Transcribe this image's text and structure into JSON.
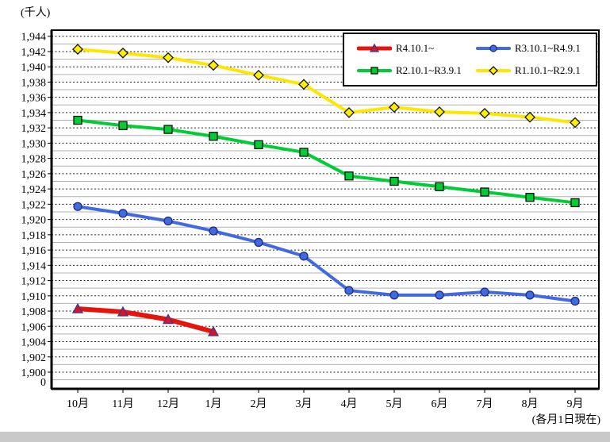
{
  "chart_data": {
    "type": "line",
    "unit_label": "(千人)",
    "footnote": "(各月1日現在)",
    "categories": [
      "10月",
      "11月",
      "12月",
      "1月",
      "2月",
      "3月",
      "4月",
      "5月",
      "6月",
      "7月",
      "8月",
      "9月"
    ],
    "series": [
      {
        "name": "R4.10.1~",
        "line_color": "#e8140c",
        "line_width": 6,
        "marker": "triangle",
        "marker_fill": "#de1126",
        "marker_stroke": "#3a3a8c",
        "values": [
          1908.3,
          1907.9,
          1906.9,
          1905.3,
          null,
          null,
          null,
          null,
          null,
          null,
          null,
          null
        ]
      },
      {
        "name": "R3.10.1~R4.9.1",
        "line_color": "#4169e1",
        "line_width": 4,
        "marker": "circle",
        "marker_fill": "#4169e1",
        "marker_stroke": "#1b2f7d",
        "values": [
          1921.7,
          1920.8,
          1919.8,
          1918.5,
          1917.0,
          1915.2,
          1910.7,
          1910.1,
          1910.1,
          1910.5,
          1910.1,
          1909.3
        ]
      },
      {
        "name": "R2.10.1~R3.9.1",
        "line_color": "#00cc33",
        "line_width": 4,
        "marker": "square",
        "marker_fill": "#00cc33",
        "marker_stroke": "#111111",
        "values": [
          1933.0,
          1932.3,
          1931.8,
          1930.9,
          1929.8,
          1928.8,
          1925.7,
          1925.0,
          1924.3,
          1923.6,
          1922.9,
          1922.2
        ]
      },
      {
        "name": "R1.10.1~R2.9.1",
        "line_color": "#ffe600",
        "line_width": 4,
        "marker": "diamond",
        "marker_fill": "#ffee00",
        "marker_stroke": "#111111",
        "values": [
          1942.3,
          1941.8,
          1941.2,
          1940.2,
          1938.9,
          1937.7,
          1934.0,
          1934.7,
          1934.1,
          1933.9,
          1933.4,
          1932.7
        ]
      }
    ],
    "y_axis": {
      "min": 1900,
      "max": 1944,
      "tick_step": 2,
      "grid_step": 1,
      "break_label": "0"
    },
    "ylim": [
      1900,
      1944
    ],
    "legend_position": "top-right",
    "grid": true,
    "grid_major_color": "#222222",
    "grid_minor_color": "#b0b0b0"
  }
}
